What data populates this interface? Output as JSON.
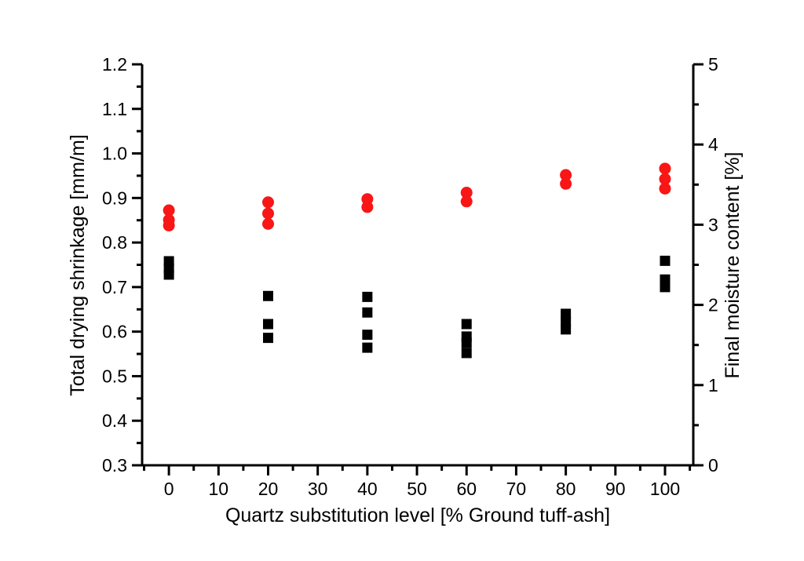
{
  "figure": {
    "background_color": "#ffffff",
    "axis_color": "#000000",
    "accent_red": "#f81616"
  },
  "chart_data": {
    "type": "scatter",
    "title": "",
    "xlabel": "Quartz substitution level [% Ground tuff-ash]",
    "ylabel_left": "Total drying shrinkage [mm/m]",
    "ylabel_right": "Final moisture content [%]",
    "legend": "none",
    "grid": false,
    "x_axis": {
      "range": [
        -5.4,
        105.7
      ],
      "major_tick_values": [
        0,
        10,
        20,
        30,
        40,
        50,
        60,
        70,
        80,
        90,
        100
      ],
      "major_tick_labels": [
        "0",
        "10",
        "20",
        "30",
        "40",
        "50",
        "60",
        "70",
        "80",
        "90",
        "100"
      ],
      "minor_tick_values": [
        -5,
        5,
        15,
        25,
        35,
        45,
        55,
        65,
        75,
        85,
        95,
        105
      ]
    },
    "y_axis_left": {
      "range": [
        0.3,
        1.2
      ],
      "major_tick_values": [
        0.3,
        0.4,
        0.5,
        0.6,
        0.7,
        0.8,
        0.9,
        1.0,
        1.1,
        1.2
      ],
      "major_tick_labels": [
        "0.3",
        "0.4",
        "0.5",
        "0.6",
        "0.7",
        "0.8",
        "0.9",
        "1.0",
        "1.1",
        "1.2"
      ],
      "minor_tick_values": [
        0.35,
        0.45,
        0.55,
        0.65,
        0.75,
        0.85,
        0.95,
        1.05,
        1.15
      ]
    },
    "y_axis_right": {
      "range": [
        0,
        5
      ],
      "major_tick_values": [
        0,
        1,
        2,
        3,
        4,
        5
      ],
      "major_tick_labels": [
        "0",
        "1",
        "2",
        "3",
        "4",
        "5"
      ],
      "minor_tick_values": [
        0.5,
        1.5,
        2.5,
        3.5,
        4.5
      ]
    },
    "series": [
      {
        "name": "Total drying shrinkage",
        "axis": "left",
        "marker": "square",
        "marker_size": 13,
        "color": "#000000",
        "points": [
          [
            0,
            0.758
          ],
          [
            0,
            0.742
          ],
          [
            0,
            0.728
          ],
          [
            20,
            0.68
          ],
          [
            20,
            0.617
          ],
          [
            20,
            0.586
          ],
          [
            40,
            0.678
          ],
          [
            40,
            0.643
          ],
          [
            40,
            0.593
          ],
          [
            40,
            0.564
          ],
          [
            60,
            0.617
          ],
          [
            60,
            0.589
          ],
          [
            60,
            0.575
          ],
          [
            60,
            0.552
          ],
          [
            80,
            0.64
          ],
          [
            80,
            0.622
          ],
          [
            80,
            0.605
          ],
          [
            100,
            0.759
          ],
          [
            100,
            0.717
          ],
          [
            100,
            0.7
          ]
        ]
      },
      {
        "name": "Final moisture content",
        "axis": "right",
        "marker": "circle",
        "marker_size": 15,
        "color": "#f81616",
        "points": [
          [
            0,
            3.18
          ],
          [
            0,
            3.06
          ],
          [
            0,
            2.99
          ],
          [
            20,
            3.28
          ],
          [
            20,
            3.14
          ],
          [
            20,
            3.01
          ],
          [
            40,
            3.32
          ],
          [
            40,
            3.22
          ],
          [
            60,
            3.4
          ],
          [
            60,
            3.29
          ],
          [
            80,
            3.62
          ],
          [
            80,
            3.51
          ],
          [
            100,
            3.7
          ],
          [
            100,
            3.57
          ],
          [
            100,
            3.45
          ]
        ]
      }
    ]
  }
}
